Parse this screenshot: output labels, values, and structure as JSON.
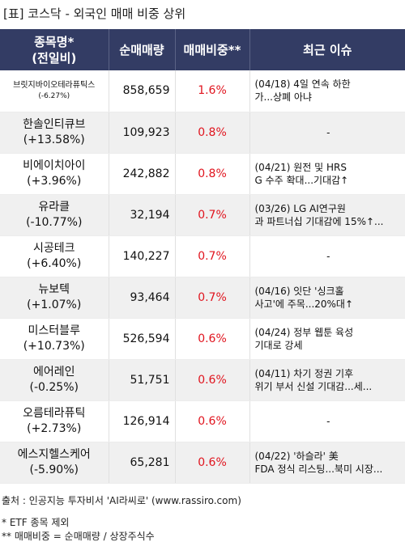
{
  "title": "[표] 코스닥 - 외국인 매매 비중 상위",
  "headers": {
    "name_line1": "종목명*",
    "name_line2": "(전일비)",
    "volume": "순매매량",
    "ratio": "매매비중**",
    "issue": "최근 이슈"
  },
  "rows": [
    {
      "name": "브릿지바이오테라퓨틱스",
      "change": "(-6.27%)",
      "volume": "858,659",
      "ratio": "1.6%",
      "issue1": "(04/18) 4일 연속 하한",
      "issue2": "가...상폐 아냐",
      "small": true
    },
    {
      "name": "한솔인티큐브",
      "change": "(+13.58%)",
      "volume": "109,923",
      "ratio": "0.8%",
      "issue1": "-",
      "issue2": ""
    },
    {
      "name": "비에이치아이",
      "change": "(+3.96%)",
      "volume": "242,882",
      "ratio": "0.8%",
      "issue1": "(04/21) 원전 및 HRS",
      "issue2": "G 수주 확대...기대감↑"
    },
    {
      "name": "유라클",
      "change": "(-10.77%)",
      "volume": "32,194",
      "ratio": "0.7%",
      "issue1": "(03/26) LG AI연구원",
      "issue2": "과 파트너십 기대감에 15%↑..."
    },
    {
      "name": "시공테크",
      "change": "(+6.40%)",
      "volume": "140,227",
      "ratio": "0.7%",
      "issue1": "-",
      "issue2": ""
    },
    {
      "name": "뉴보텍",
      "change": "(+1.07%)",
      "volume": "93,464",
      "ratio": "0.7%",
      "issue1": "(04/16) 잇단 '싱크홀",
      "issue2": "사고'에 주목...20%대↑"
    },
    {
      "name": "미스터블루",
      "change": "(+10.73%)",
      "volume": "526,594",
      "ratio": "0.6%",
      "issue1": "(04/24) 정부 웹툰 육성",
      "issue2": " 기대로 강세"
    },
    {
      "name": "에어레인",
      "change": "(-0.25%)",
      "volume": "51,751",
      "ratio": "0.6%",
      "issue1": "(04/11) 차기 정권 기후",
      "issue2": "위기 부서 신설 기대감...세..."
    },
    {
      "name": "오름테라퓨틱",
      "change": "(+2.73%)",
      "volume": "126,914",
      "ratio": "0.6%",
      "issue1": "-",
      "issue2": ""
    },
    {
      "name": "에스지헬스케어",
      "change": "(-5.90%)",
      "volume": "65,281",
      "ratio": "0.6%",
      "issue1": "(04/22) '하슬라' 美",
      "issue2": "FDA 정식 리스팅...북미 시장..."
    }
  ],
  "footer": {
    "source": "출처 : 인공지능 투자비서 'AI라씨로' (www.rassiro.com)",
    "note1": "* ETF 종목 제외",
    "note2": "** 매매비중 = 순매매량 / 상장주식수"
  },
  "colors": {
    "header_bg": "#333c64",
    "ratio_text": "#e0141e",
    "alt_row": "#f0f0f0"
  }
}
